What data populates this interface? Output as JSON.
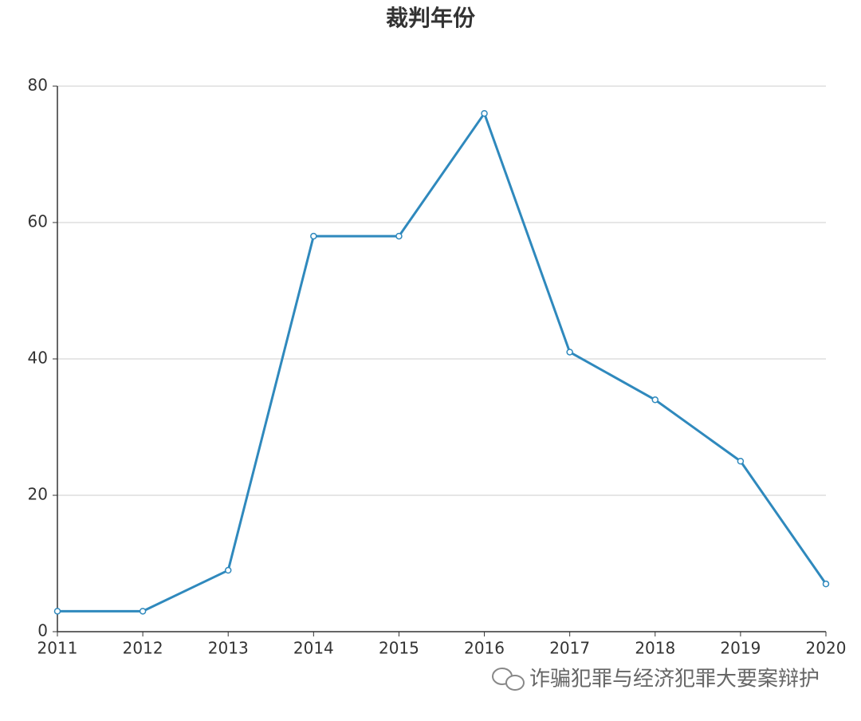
{
  "chart_data": {
    "type": "line",
    "title": "裁判年份",
    "categories": [
      "2011",
      "2012",
      "2013",
      "2014",
      "2015",
      "2016",
      "2017",
      "2018",
      "2019",
      "2020"
    ],
    "series": [
      {
        "name": "裁判年份",
        "color": "#2f89bd",
        "values": [
          3,
          3,
          9,
          58,
          58,
          76,
          41,
          34,
          25,
          7
        ]
      }
    ],
    "ylim": [
      0,
      80
    ],
    "yticks": [
      0,
      20,
      40,
      60,
      80
    ],
    "grid": true,
    "watermark": "诈骗犯罪与经济犯罪大要案辩护"
  }
}
